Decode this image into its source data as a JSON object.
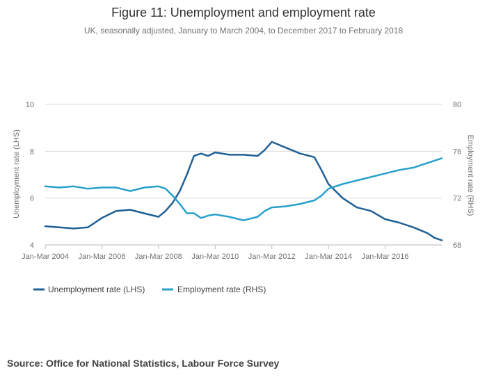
{
  "header": {
    "title": "Figure 11: Unemployment and employment rate",
    "subtitle": "UK, seasonally adjusted, January to March 2004, to December 2017 to February 2018"
  },
  "footer": {
    "source": "Source: Office for National Statistics, Labour Force Survey"
  },
  "colors": {
    "unemployment": "#206095",
    "employment": "#27a0cc",
    "grid": "#d9d9d9",
    "axis_text": "#707070"
  },
  "chart_data": {
    "type": "line",
    "title": "Figure 11: Unemployment and employment rate",
    "subtitle": "UK, seasonally adjusted, January to March 2004, to December 2017 to February 2018",
    "x_start": "Jan-Mar 2004",
    "x_end": "Dec-Feb 2018",
    "x_ticks": [
      "Jan-Mar 2004",
      "Jan-Mar 2006",
      "Jan-Mar 2008",
      "Jan-Mar 2010",
      "Jan-Mar 2012",
      "Jan-Mar 2014",
      "Jan-Mar 2016"
    ],
    "y_left": {
      "label": "Unemployment rate (LHS)",
      "range": [
        4,
        10
      ],
      "ticks": [
        "4",
        "6",
        "8",
        "10"
      ]
    },
    "y_right": {
      "label": "Employment rate (RHS)",
      "range": [
        68,
        80
      ],
      "ticks": [
        "68",
        "72",
        "76",
        "80"
      ]
    },
    "legend": [
      "Unemployment rate (LHS)",
      "Employment rate (RHS)"
    ],
    "legend_position": "bottom-left",
    "x_values": [
      2004.0,
      2004.5,
      2005.0,
      2005.5,
      2006.0,
      2006.5,
      2007.0,
      2007.5,
      2008.0,
      2008.25,
      2008.5,
      2008.75,
      2009.0,
      2009.25,
      2009.5,
      2009.75,
      2010.0,
      2010.5,
      2011.0,
      2011.5,
      2011.75,
      2012.0,
      2012.5,
      2013.0,
      2013.5,
      2013.75,
      2014.0,
      2014.5,
      2015.0,
      2015.5,
      2016.0,
      2016.5,
      2017.0,
      2017.5,
      2017.75,
      2018.0
    ],
    "series": [
      {
        "name": "Unemployment rate (LHS)",
        "axis": "left",
        "values": [
          4.8,
          4.75,
          4.7,
          4.75,
          5.15,
          5.45,
          5.5,
          5.35,
          5.2,
          5.45,
          5.8,
          6.3,
          7.0,
          7.8,
          7.9,
          7.8,
          7.95,
          7.85,
          7.85,
          7.8,
          8.05,
          8.4,
          8.15,
          7.9,
          7.75,
          7.2,
          6.6,
          6.0,
          5.6,
          5.45,
          5.1,
          4.95,
          4.75,
          4.5,
          4.3,
          4.2
        ]
      },
      {
        "name": "Employment rate (RHS)",
        "axis": "right",
        "values": [
          73.0,
          72.9,
          73.0,
          72.8,
          72.9,
          72.9,
          72.6,
          72.9,
          73.0,
          72.8,
          72.2,
          71.5,
          70.7,
          70.7,
          70.3,
          70.5,
          70.6,
          70.4,
          70.1,
          70.4,
          70.9,
          71.2,
          71.3,
          71.5,
          71.8,
          72.2,
          72.8,
          73.2,
          73.5,
          73.8,
          74.1,
          74.4,
          74.6,
          75.0,
          75.2,
          75.4
        ]
      }
    ]
  }
}
